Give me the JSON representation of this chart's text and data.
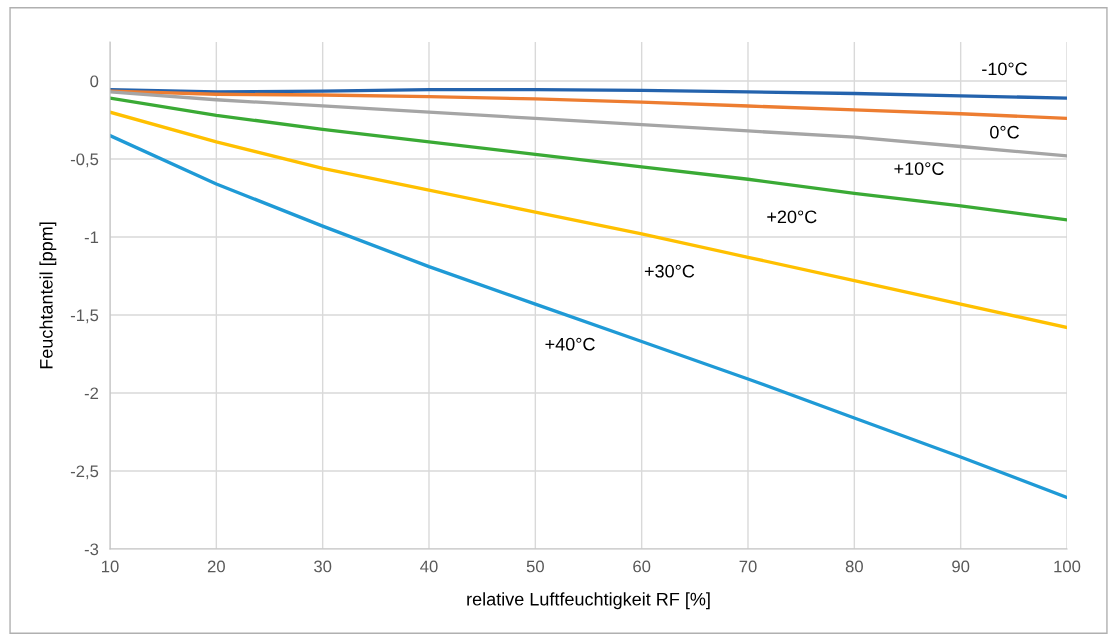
{
  "chart_data": {
    "type": "line",
    "xlabel": "relative Luftfeuchtigkeit RF [%]",
    "ylabel": "Feuchtanteil [ppm]",
    "x": [
      10,
      20,
      30,
      40,
      50,
      60,
      70,
      80,
      90,
      100
    ],
    "series": [
      {
        "name": "-10°C",
        "color": "#2463ad",
        "values": [
          -0.055,
          -0.07,
          -0.065,
          -0.055,
          -0.055,
          -0.06,
          -0.07,
          -0.08,
          -0.095,
          -0.11
        ]
      },
      {
        "name": "0°C",
        "color": "#ed7d31",
        "values": [
          -0.065,
          -0.085,
          -0.09,
          -0.1,
          -0.115,
          -0.135,
          -0.16,
          -0.185,
          -0.21,
          -0.24
        ]
      },
      {
        "name": "+10°C",
        "color": "#a5a5a5",
        "values": [
          -0.07,
          -0.12,
          -0.16,
          -0.2,
          -0.24,
          -0.28,
          -0.32,
          -0.36,
          -0.42,
          -0.48
        ]
      },
      {
        "name": "+20°C",
        "color": "#3aaa35",
        "values": [
          -0.11,
          -0.22,
          -0.31,
          -0.39,
          -0.47,
          -0.55,
          -0.63,
          -0.72,
          -0.8,
          -0.89
        ]
      },
      {
        "name": "+30°C",
        "color": "#ffc000",
        "values": [
          -0.2,
          -0.39,
          -0.56,
          -0.7,
          -0.84,
          -0.98,
          -1.13,
          -1.28,
          -1.43,
          -1.58
        ]
      },
      {
        "name": "+40°C",
        "color": "#1f9ad6",
        "values": [
          -0.35,
          -0.66,
          -0.93,
          -1.19,
          -1.43,
          -1.67,
          -1.91,
          -2.16,
          -2.41,
          -2.67
        ]
      }
    ],
    "xlim": [
      10,
      100
    ],
    "xticks": [
      10,
      20,
      30,
      40,
      50,
      60,
      70,
      80,
      90,
      100
    ],
    "ylim": [
      -3,
      0.25
    ],
    "yticks": [
      {
        "value": -3,
        "label": "-3"
      },
      {
        "value": -2.5,
        "label": "-2,5"
      },
      {
        "value": -2,
        "label": "-2"
      },
      {
        "value": -1.5,
        "label": "-1,5"
      },
      {
        "value": -1,
        "label": "-1"
      },
      {
        "value": -0.5,
        "label": "-0,5"
      },
      {
        "value": 0,
        "label": "0"
      }
    ],
    "grid": true,
    "legend": false,
    "marker": "none",
    "line_style": "solid"
  }
}
